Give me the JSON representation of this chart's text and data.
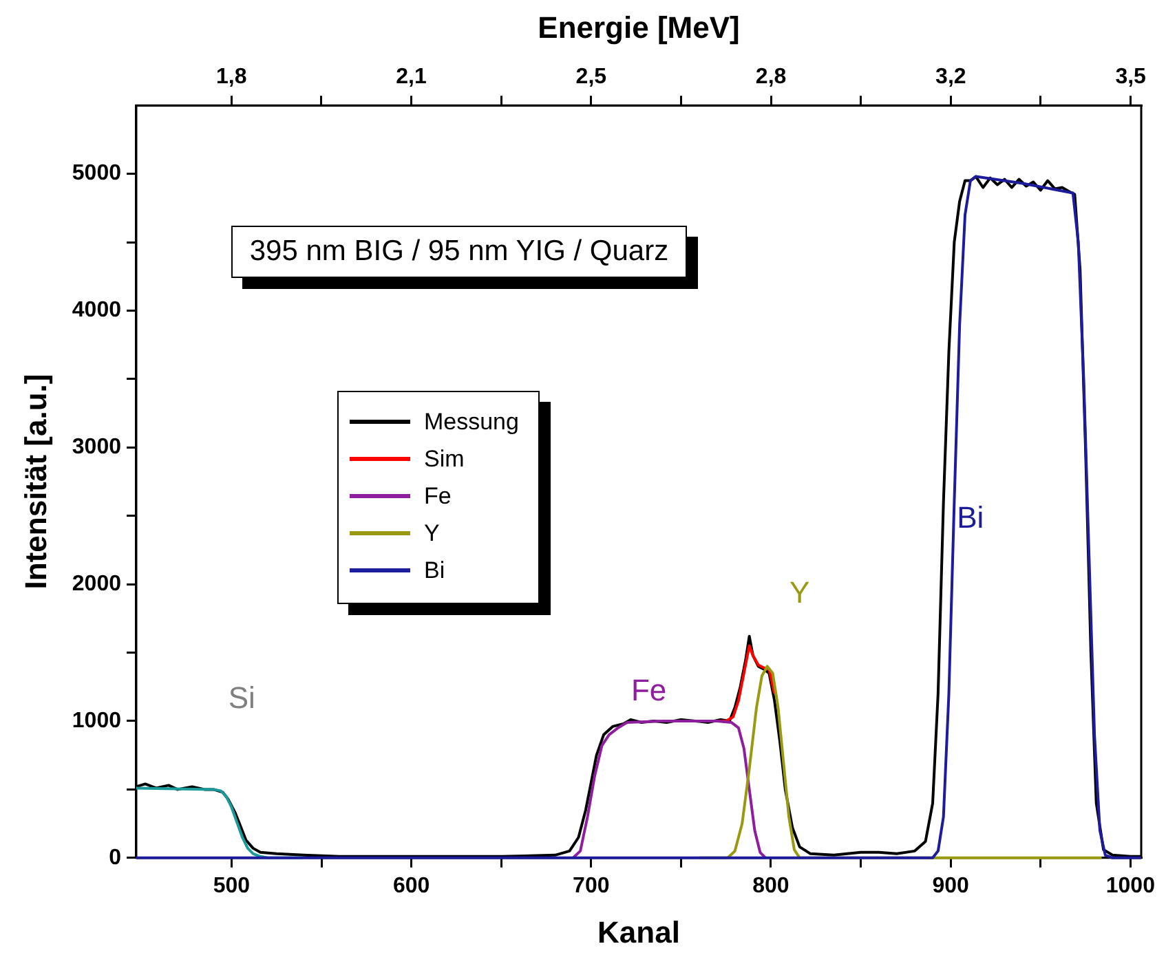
{
  "chart_data": {
    "type": "line",
    "xlabel": "Kanal",
    "ylabel": "Intensität [a.u.]",
    "x2label": "Energie [MeV]",
    "xlim": [
      447,
      1006
    ],
    "xticks": [
      500,
      {
        "value": 550,
        "label": null
      },
      600,
      {
        "value": 650,
        "label": null
      },
      700,
      {
        "value": 750,
        "label": null
      },
      800,
      {
        "value": 850,
        "label": null
      },
      900,
      {
        "value": 950,
        "label": null
      },
      1000
    ],
    "x2lim": [
      1.62,
      3.52
    ],
    "x2ticks": [
      {
        "value": 1.8,
        "label": "1,8"
      },
      {
        "value": 1.97,
        "label": null
      },
      {
        "value": 2.14,
        "label": "2,1"
      },
      {
        "value": 2.31,
        "label": null
      },
      {
        "value": 2.48,
        "label": "2,5"
      },
      {
        "value": 2.65,
        "label": null
      },
      {
        "value": 2.82,
        "label": "2,8"
      },
      {
        "value": 2.99,
        "label": null
      },
      {
        "value": 3.16,
        "label": "3,2"
      },
      {
        "value": 3.33,
        "label": null
      },
      {
        "value": 3.5,
        "label": "3,5"
      }
    ],
    "ylim": [
      0,
      5500
    ],
    "yticks": [
      0,
      {
        "value": 500,
        "label": null
      },
      1000,
      {
        "value": 1500,
        "label": null
      },
      2000,
      {
        "value": 2500,
        "label": null
      },
      3000,
      {
        "value": 3500,
        "label": null
      },
      4000,
      {
        "value": 4500,
        "label": null
      },
      5000
    ],
    "grid": false,
    "legend": "left",
    "marker": "none",
    "annotations": [
      "395 nm BIG / 95 nm YIG / Quarz",
      "Si",
      "Fe",
      "Y",
      "Bi"
    ],
    "series": [
      {
        "name": "Bi",
        "color": "#1c1c9c",
        "x": [
          447,
          890,
          893,
          896,
          899,
          902,
          905,
          908,
          911,
          914,
          940,
          968,
          971,
          974,
          977,
          980,
          983,
          986,
          990,
          1006
        ],
        "values": [
          0,
          0,
          50,
          300,
          1200,
          2600,
          3900,
          4700,
          4950,
          4980,
          4930,
          4860,
          4500,
          3500,
          2200,
          900,
          200,
          20,
          0,
          0
        ]
      },
      {
        "name": "Y",
        "color": "#9a9a12",
        "x": [
          760,
          776,
          780,
          784,
          788,
          792,
          795,
          798,
          801,
          804,
          807,
          810,
          813,
          816,
          984
        ],
        "values": [
          0,
          0,
          50,
          250,
          650,
          1100,
          1330,
          1400,
          1350,
          1100,
          700,
          300,
          60,
          0,
          0
        ]
      },
      {
        "name": "Fe",
        "color": "#8e1e9e",
        "x": [
          690,
          694,
          698,
          702,
          706,
          710,
          715,
          720,
          740,
          770,
          778,
          782,
          785,
          788,
          791,
          794,
          797
        ],
        "values": [
          0,
          50,
          300,
          600,
          820,
          900,
          950,
          990,
          1000,
          1000,
          990,
          950,
          800,
          500,
          200,
          40,
          0
        ]
      },
      {
        "color": "#1a9a9a",
        "x": [
          447,
          490,
          494,
          497,
          500,
          503,
          506,
          509,
          512,
          516,
          520,
          540
        ],
        "values": [
          510,
          500,
          490,
          450,
          370,
          260,
          150,
          70,
          30,
          10,
          0,
          0
        ]
      },
      {
        "name": "Sim",
        "color": "#ff0000",
        "x": [
          770,
          775,
          779,
          782,
          785,
          788,
          790,
          793,
          796,
          799,
          802
        ],
        "values": [
          1000,
          1000,
          1030,
          1150,
          1350,
          1550,
          1480,
          1410,
          1390,
          1380,
          1200
        ]
      },
      {
        "name": "Messung",
        "color": "#000000",
        "x": [
          447,
          452,
          458,
          465,
          470,
          478,
          485,
          490,
          495,
          498,
          502,
          505,
          508,
          512,
          516,
          525,
          540,
          560,
          600,
          650,
          680,
          688,
          693,
          697,
          700,
          703,
          707,
          712,
          718,
          722,
          728,
          735,
          742,
          750,
          758,
          765,
          772,
          777,
          780,
          783,
          786,
          788,
          790,
          793,
          796,
          799,
          802,
          805,
          808,
          812,
          816,
          822,
          835,
          850,
          860,
          870,
          880,
          886,
          890,
          893,
          896,
          899,
          902,
          905,
          908,
          911,
          914,
          918,
          922,
          926,
          930,
          934,
          938,
          942,
          946,
          950,
          954,
          958,
          962,
          966,
          969,
          972,
          975,
          978,
          981,
          985,
          990,
          1000,
          1006
        ],
        "values": [
          520,
          540,
          510,
          530,
          500,
          520,
          500,
          500,
          480,
          430,
          330,
          230,
          130,
          70,
          40,
          30,
          20,
          10,
          10,
          10,
          20,
          50,
          150,
          350,
          550,
          750,
          900,
          960,
          980,
          1010,
          990,
          1000,
          990,
          1010,
          1000,
          990,
          1010,
          1000,
          1100,
          1250,
          1450,
          1620,
          1480,
          1400,
          1380,
          1350,
          1150,
          850,
          500,
          220,
          80,
          30,
          20,
          40,
          40,
          30,
          50,
          120,
          400,
          1200,
          2600,
          3700,
          4500,
          4800,
          4950,
          4950,
          4980,
          4900,
          4970,
          4920,
          4960,
          4900,
          4960,
          4910,
          4940,
          4880,
          4950,
          4890,
          4900,
          4870,
          4850,
          4300,
          3000,
          1500,
          400,
          60,
          20,
          10,
          10
        ]
      }
    ]
  }
}
